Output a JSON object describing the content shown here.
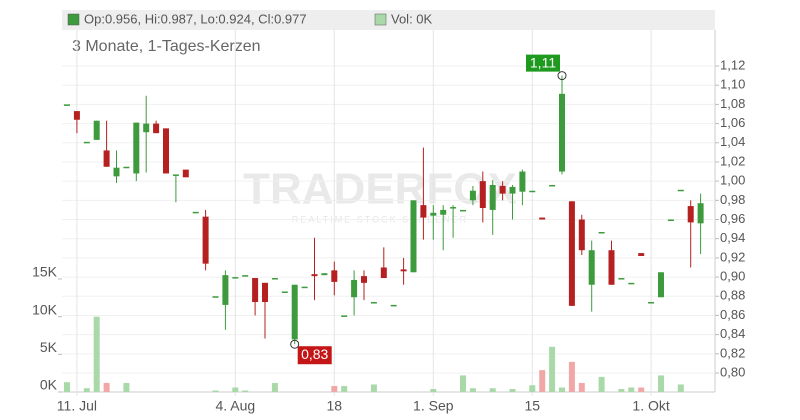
{
  "chart_data": {
    "type": "candlestick",
    "legend": [
      "Op:0.956, Hi:0.987, Lo:0.924, Cl:0.977",
      "Vol: 0K"
    ],
    "subtitle": "3 Monate, 1-Tages-Kerzen",
    "watermark": [
      "TRADERFOX",
      "REALTIME STOCK SCREENER"
    ],
    "high_label": "1,11",
    "low_label": "0,83",
    "up_color": "#3d9b3d",
    "down_color": "#b52020",
    "volume_up_color": "#a9d9a9",
    "volume_down_color": "#f2a7a7",
    "categories": [
      null,
      "11. Jul",
      null,
      null,
      null,
      null,
      null,
      null,
      null,
      null,
      null,
      null,
      null,
      null,
      null,
      null,
      null,
      "4. Aug",
      null,
      null,
      null,
      null,
      null,
      null,
      null,
      null,
      null,
      "18",
      null,
      null,
      null,
      null,
      null,
      null,
      null,
      null,
      null,
      "1. Sep",
      null,
      null,
      null,
      null,
      null,
      null,
      null,
      null,
      null,
      "15",
      null,
      null,
      null,
      null,
      null,
      null,
      null,
      null,
      null,
      null,
      null,
      "1. Okt",
      null,
      null,
      null,
      null,
      null
    ],
    "open": [
      1.08,
      1.073,
      1.041,
      1.043,
      1.032,
      1.005,
      1.015,
      1.008,
      1.051,
      1.06,
      1.055,
      1.007,
      1.012,
      0.968,
      0.963,
      0.88,
      0.871,
      0.9,
      0.902,
      0.899,
      0.894,
      0.899,
      0.885,
      0.835,
      0.89,
      0.903,
      0.902,
      0.907,
      0.86,
      0.879,
      0.901,
      0.874,
      0.91,
      0.871,
      0.908,
      0.905,
      0.975,
      0.964,
      0.965,
      0.972,
      0.97,
      0.98,
      1.0,
      0.97,
      0.995,
      0.987,
      0.989,
      0.99,
      0.962,
      0.996,
      1.01,
      0.979,
      0.96,
      0.892,
      0.947,
      0.928,
      0.899,
      0.894,
      0.925,
      0.874,
      0.879,
      0.96,
      0.991,
      0.974,
      0.956
    ],
    "high": [
      1.08,
      1.073,
      1.041,
      1.063,
      1.063,
      1.032,
      1.015,
      1.061,
      1.089,
      1.063,
      1.055,
      1.007,
      1.012,
      0.968,
      0.97,
      0.88,
      0.907,
      0.9,
      0.902,
      0.899,
      0.894,
      0.899,
      0.885,
      0.892,
      0.89,
      0.941,
      0.904,
      0.916,
      0.86,
      0.907,
      0.907,
      0.874,
      0.931,
      0.871,
      0.92,
      0.98,
      1.035,
      0.975,
      0.975,
      0.975,
      0.97,
      0.995,
      1.01,
      1.001,
      1.0,
      0.996,
      1.012,
      0.99,
      0.962,
      0.996,
      1.11,
      0.979,
      0.965,
      0.938,
      0.947,
      0.938,
      0.899,
      0.894,
      0.925,
      0.874,
      0.905,
      0.96,
      0.991,
      0.98,
      0.987
    ],
    "low": [
      1.08,
      1.05,
      1.041,
      1.043,
      1.015,
      0.998,
      1.015,
      1.0,
      1.009,
      1.05,
      1.008,
      0.978,
      1.004,
      0.968,
      0.907,
      0.88,
      0.845,
      0.9,
      0.902,
      0.86,
      0.836,
      0.899,
      0.885,
      0.83,
      0.89,
      0.876,
      0.902,
      0.881,
      0.86,
      0.86,
      0.876,
      0.874,
      0.899,
      0.871,
      0.892,
      0.905,
      0.939,
      0.939,
      0.928,
      0.941,
      0.97,
      0.975,
      0.957,
      0.944,
      0.98,
      0.96,
      0.975,
      0.99,
      0.96,
      0.996,
      1.007,
      0.87,
      0.923,
      0.864,
      0.947,
      0.892,
      0.899,
      0.894,
      0.922,
      0.874,
      0.879,
      0.96,
      0.991,
      0.91,
      0.924
    ],
    "close": [
      1.08,
      1.064,
      1.041,
      1.063,
      1.015,
      1.014,
      1.015,
      1.061,
      1.06,
      1.05,
      1.008,
      1.007,
      1.004,
      0.968,
      0.914,
      0.88,
      0.902,
      0.9,
      0.902,
      0.874,
      0.874,
      0.899,
      0.885,
      0.892,
      0.89,
      0.901,
      0.904,
      0.895,
      0.86,
      0.897,
      0.894,
      0.874,
      0.899,
      0.871,
      0.906,
      0.98,
      0.962,
      0.967,
      0.97,
      0.973,
      0.97,
      0.99,
      0.972,
      0.996,
      0.987,
      0.994,
      1.01,
      0.99,
      0.96,
      0.996,
      1.091,
      0.87,
      0.928,
      0.928,
      0.947,
      0.892,
      0.899,
      0.894,
      0.922,
      0.874,
      0.905,
      0.96,
      0.991,
      0.957,
      0.977
    ],
    "volume": [
      1.3,
      0,
      0.5,
      10,
      1.2,
      0,
      1.2,
      0,
      0,
      0,
      0,
      0,
      0,
      0,
      0,
      0.2,
      0,
      0.6,
      0.2,
      0,
      0,
      1.2,
      0,
      0,
      0,
      0,
      0,
      0.8,
      0.8,
      0,
      0,
      1.0,
      0,
      0,
      0,
      0,
      0,
      0.4,
      0,
      0,
      2.2,
      0.5,
      0,
      0.5,
      0,
      0.4,
      0,
      0.9,
      2.9,
      6,
      0.6,
      4,
      1.2,
      0,
      2.0,
      0,
      0.4,
      0.6,
      0.6,
      0,
      2.2,
      0,
      1.0,
      0,
      0
    ],
    "ylim": [
      0.7802,
      1.1784
    ],
    "yticks": [
      {
        "value": 0.8,
        "label": "0,80"
      },
      {
        "value": 0.82,
        "label": "0,82"
      },
      {
        "value": 0.84,
        "label": "0,84"
      },
      {
        "value": 0.86,
        "label": "0,86"
      },
      {
        "value": 0.88,
        "label": "0,88"
      },
      {
        "value": 0.9,
        "label": "0,90"
      },
      {
        "value": 0.92,
        "label": "0,92"
      },
      {
        "value": 0.94,
        "label": "0,94"
      },
      {
        "value": 0.96,
        "label": "0,96"
      },
      {
        "value": 0.98,
        "label": "0,98"
      },
      {
        "value": 1.0,
        "label": "1,00"
      },
      {
        "value": 1.02,
        "label": "1,02"
      },
      {
        "value": 1.04,
        "label": "1,04"
      },
      {
        "value": 1.06,
        "label": "1,06"
      },
      {
        "value": 1.08,
        "label": "1,08"
      },
      {
        "value": 1.1,
        "label": "1,10"
      },
      {
        "value": 1.12,
        "label": "1,12"
      }
    ],
    "y2lim": [
      0,
      50.7
    ],
    "y2ticks": [
      {
        "value": 0,
        "label": "0K"
      },
      {
        "value": 5,
        "label": "5K"
      },
      {
        "value": 10,
        "label": "10K"
      },
      {
        "value": 15,
        "label": "15K"
      }
    ]
  }
}
